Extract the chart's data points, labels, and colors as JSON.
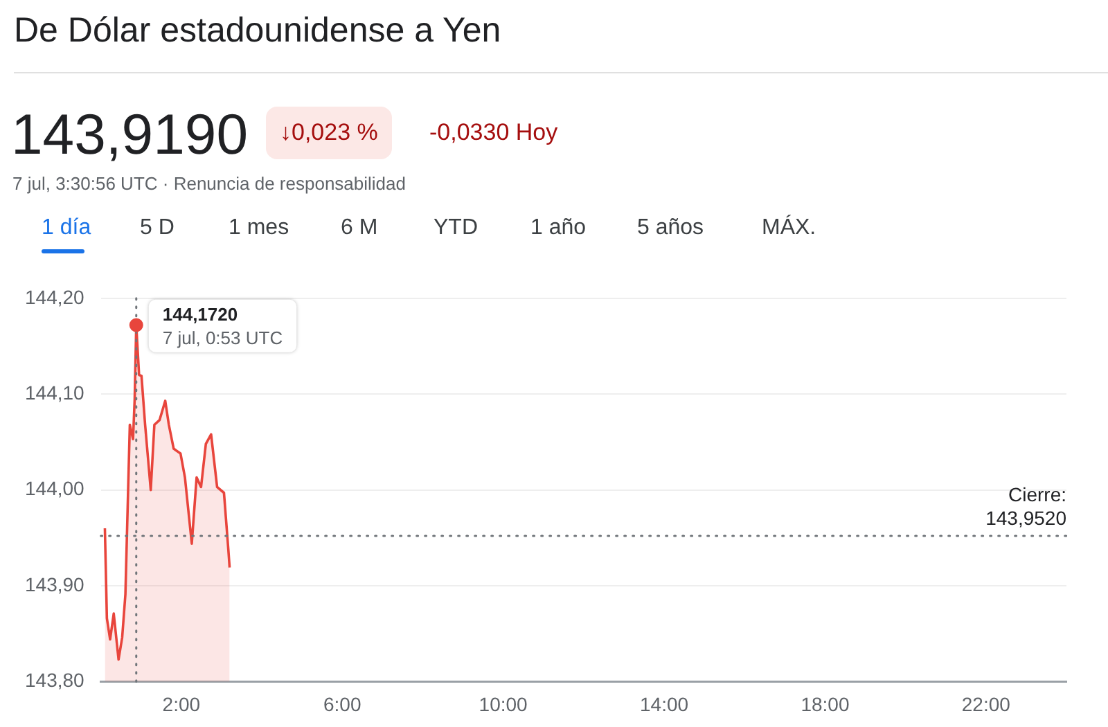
{
  "chart_data": {
    "type": "area",
    "title": "De Dólar estadounidense a Yen",
    "subtitle": "7 jul, 3:30:56 UTC · Renuncia de responsabilidad",
    "annotations": [
      "143,9190",
      "↓0,023 %",
      "-0,0330 Hoy",
      "1 día",
      "5 D",
      "1 mes",
      "6 M",
      "YTD",
      "1 año",
      "5 años",
      "MÁX.",
      {
        "text": "144,1720\n7 jul, 0:53 UTC",
        "x": 0.88,
        "y": 144.172
      }
    ],
    "x": [
      0.1,
      0.15,
      0.23,
      0.32,
      0.44,
      0.53,
      0.61,
      0.72,
      0.8,
      0.84,
      0.88,
      0.95,
      1.01,
      1.1,
      1.24,
      1.33,
      1.46,
      1.6,
      1.69,
      1.81,
      1.98,
      2.09,
      2.26,
      2.38,
      2.49,
      2.61,
      2.74,
      2.89,
      3.06,
      3.17,
      3.2
    ],
    "series": [
      {
        "color": "#e8453c",
        "values": [
          143.96,
          143.866,
          143.844,
          143.871,
          143.823,
          143.846,
          143.891,
          144.068,
          144.053,
          144.094,
          144.172,
          144.12,
          144.119,
          144.068,
          144.0,
          144.068,
          144.073,
          144.093,
          144.068,
          144.043,
          144.038,
          144.013,
          143.944,
          144.013,
          144.003,
          144.048,
          144.058,
          144.003,
          143.997,
          143.937,
          143.919
        ]
      }
    ],
    "xlim": [
      0,
      24
    ],
    "xticks": [
      {
        "value": 2,
        "label": "2:00"
      },
      {
        "value": 6,
        "label": "6:00"
      },
      {
        "value": 10,
        "label": "10:00"
      },
      {
        "value": 14,
        "label": "14:00"
      },
      {
        "value": 18,
        "label": "18:00"
      },
      {
        "value": 22,
        "label": "22:00"
      }
    ],
    "ylim": [
      143.8,
      144.2
    ],
    "yticks": [
      {
        "value": 143.8,
        "label": "143,80"
      },
      {
        "value": 143.9,
        "label": "143,90"
      },
      {
        "value": 144.0,
        "label": "144,00"
      },
      {
        "value": 144.1,
        "label": "144,10"
      },
      {
        "value": 144.2,
        "label": "144,20"
      }
    ],
    "ref_lines": [
      {
        "axis": "y",
        "value": 143.952,
        "label": "Cierre:\n143,9520",
        "line_style": "dotted",
        "color": "#70757a"
      },
      {
        "axis": "x",
        "value": 0.88,
        "line_style": "dotted",
        "color": "#70757a"
      }
    ],
    "grid": "y",
    "legend": false,
    "marker": "none",
    "line_style": "solid"
  }
}
